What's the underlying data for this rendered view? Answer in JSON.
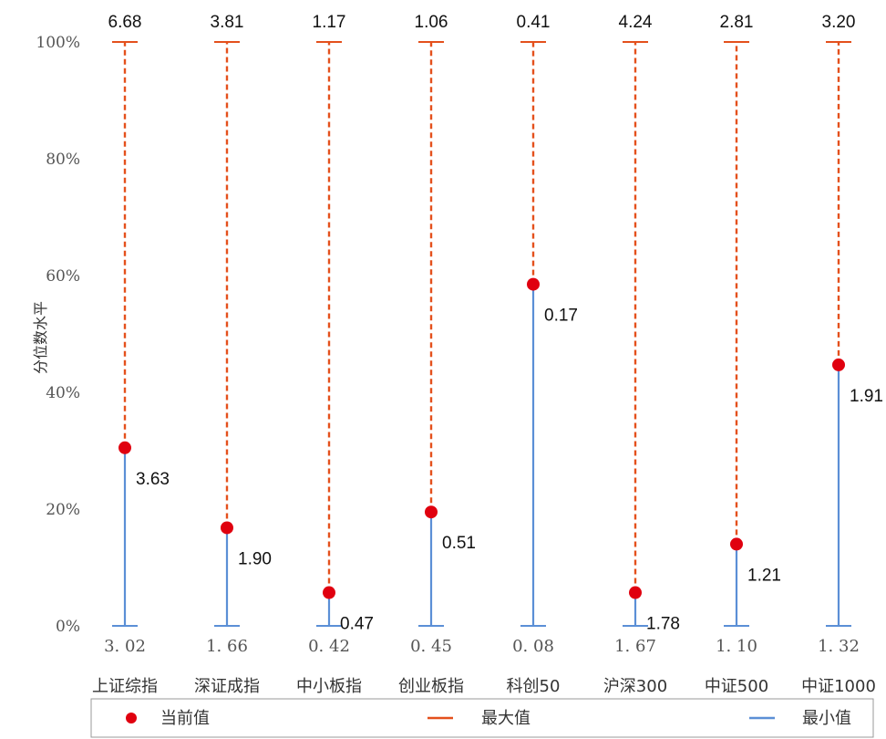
{
  "chart_data": {
    "type": "range-dot",
    "ylabel": "分位数水平",
    "yticks": [
      "0%",
      "20%",
      "40%",
      "60%",
      "80%",
      "100%"
    ],
    "ylim": [
      0,
      100
    ],
    "categories": [
      "上证综指",
      "深证成指",
      "中小板指",
      "创业板指",
      "科创50",
      "沪深300",
      "中证500",
      "中证1000"
    ],
    "max_values": [
      "6.68",
      "3.81",
      "1.17",
      "1.06",
      "0.41",
      "4.24",
      "2.81",
      "3.20"
    ],
    "min_values": [
      "3. 02",
      "1. 66",
      "0. 42",
      "0. 45",
      "0. 08",
      "1. 67",
      "1. 10",
      "1. 32"
    ],
    "current_values": [
      "3.63",
      "1.90",
      "0.47",
      "0.51",
      "0.17",
      "1.78",
      "1.21",
      "1.91"
    ],
    "current_percentile": [
      30.5,
      16.8,
      5.7,
      19.5,
      58.5,
      5.7,
      14.0,
      44.7
    ],
    "colors": {
      "current": "#e0000f",
      "max": "#e4501c",
      "min": "#5b8fd6"
    },
    "legend": {
      "position": "bottom",
      "items": [
        {
          "label": "当前值",
          "marker": "dot"
        },
        {
          "label": "最大值",
          "marker": "dash"
        },
        {
          "label": "最小值",
          "marker": "line"
        }
      ]
    }
  }
}
